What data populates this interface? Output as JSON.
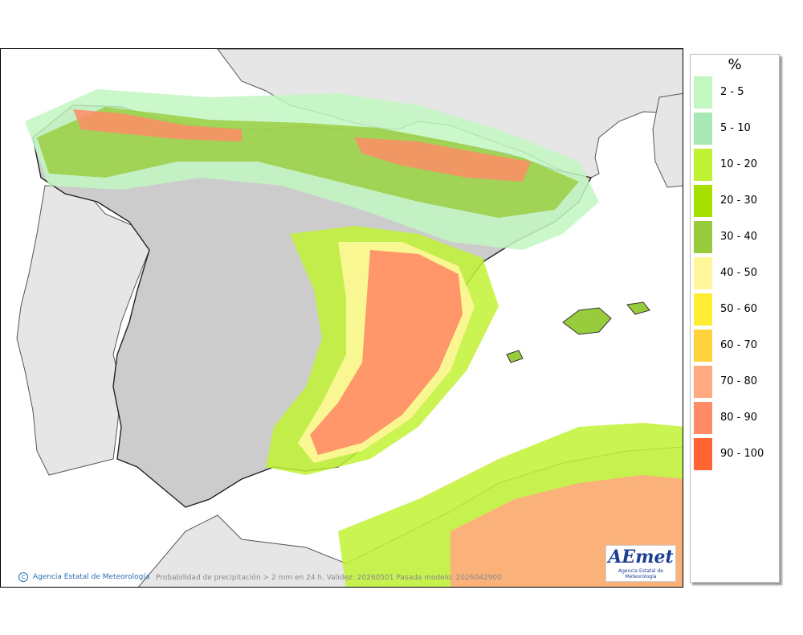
{
  "map": {
    "credit": "Agencia Estatal de Meteorología",
    "caption": "Probabilidad de precipitación > 2 mm en 24 h. Validez: 20260501 Pasada modelo: 2026042900",
    "logo_text": "AEmet",
    "logo_subtitle": "Agencia Estatal de Meteorología"
  },
  "legend": {
    "unit": "%",
    "items": [
      {
        "label": "2 - 5",
        "color": "#c2f7c2"
      },
      {
        "label": "5 - 10",
        "color": "#a8e8b5"
      },
      {
        "label": "10 - 20",
        "color": "#bff233"
      },
      {
        "label": "20 - 30",
        "color": "#a6e000"
      },
      {
        "label": "30 - 40",
        "color": "#98cc3c"
      },
      {
        "label": "40 - 50",
        "color": "#fff799"
      },
      {
        "label": "50 - 60",
        "color": "#ffee33"
      },
      {
        "label": "60 - 70",
        "color": "#ffd23c"
      },
      {
        "label": "70 - 80",
        "color": "#ffaa80"
      },
      {
        "label": "80 - 90",
        "color": "#ff8c66"
      },
      {
        "label": "90 - 100",
        "color": "#ff6633"
      }
    ]
  },
  "colors": {
    "sea": "#ffffff",
    "land_outside": "#e6e6e6",
    "relief_gray": "#c8c8c8"
  }
}
